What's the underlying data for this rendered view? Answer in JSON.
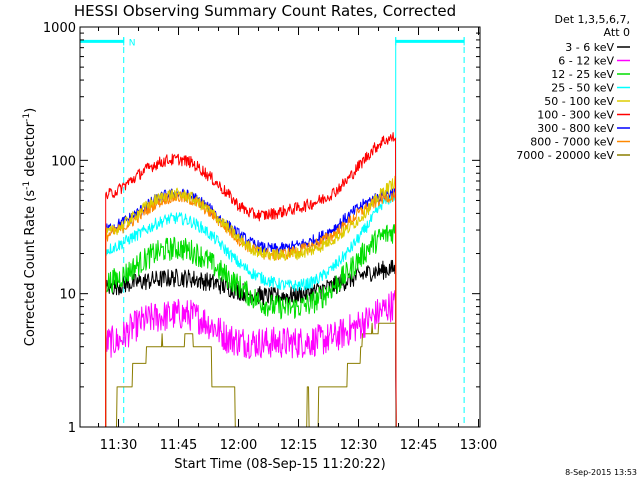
{
  "chart_data": {
    "type": "line",
    "title": "HESSI Observing Summary Count Rates, Corrected",
    "xlabel": "Start Time (08-Sep-15 11:20:22)",
    "ylabel_main": "Corrected Count Rate (s",
    "ylabel_sup1": "-1",
    "ylabel_mid": " detector",
    "ylabel_sup2": "-1",
    "ylabel_end": ")",
    "y_scale": "log",
    "ylim": [
      1,
      1000
    ],
    "xlim_minutes": [
      680.37,
      780.37
    ],
    "x_ticks": [
      {
        "label": "11:30",
        "minutes": 690
      },
      {
        "label": "11:45",
        "minutes": 705
      },
      {
        "label": "12:00",
        "minutes": 720
      },
      {
        "label": "12:15",
        "minutes": 735
      },
      {
        "label": "12:30",
        "minutes": 750
      },
      {
        "label": "12:45",
        "minutes": 765
      },
      {
        "label": "13:00",
        "minutes": 780
      }
    ],
    "y_ticks": [
      {
        "label": "1",
        "value": 1
      },
      {
        "label": "10",
        "value": 10
      },
      {
        "label": "100",
        "value": 100
      },
      {
        "label": "1000",
        "value": 1000
      }
    ],
    "legend": {
      "placement": "top-right",
      "header_line1": "Det 1,3,5,6,7,",
      "header_line2": "Att 0"
    },
    "series": [
      {
        "name": "3 - 6 keV",
        "color": "#000000",
        "x": [
          686.8,
          690,
          693,
          696,
          699,
          702,
          705,
          708,
          711,
          714,
          717,
          720,
          723,
          726,
          729,
          732,
          735,
          738,
          741,
          744,
          747,
          750,
          753,
          756,
          759.4
        ],
        "y": [
          11,
          11.5,
          12,
          12.3,
          12.7,
          13,
          13.2,
          13,
          12.5,
          12,
          11.2,
          10.5,
          10,
          9.6,
          9.5,
          9.6,
          9.8,
          10.2,
          10.8,
          11.5,
          12.5,
          13.5,
          14.5,
          15,
          15.5
        ]
      },
      {
        "name": "6 - 12 keV",
        "color": "#ff00ff",
        "x": [
          686.8,
          690,
          693,
          696,
          699,
          702,
          705,
          708,
          711,
          714,
          717,
          720,
          723,
          726,
          729,
          732,
          735,
          738,
          741,
          744,
          747,
          750,
          753,
          756,
          759.4
        ],
        "y": [
          4.3,
          4.4,
          5.4,
          6.2,
          6.6,
          6.8,
          7,
          6.9,
          6.4,
          5.6,
          4.7,
          4.4,
          4.3,
          4.3,
          4.3,
          4.3,
          4.3,
          4.4,
          4.5,
          4.7,
          5.2,
          5.8,
          6.5,
          7.5,
          8.5
        ]
      },
      {
        "name": "12 - 25 keV",
        "color": "#00dd00",
        "x": [
          686.8,
          690,
          693,
          696,
          699,
          702,
          705,
          708,
          711,
          714,
          717,
          720,
          723,
          726,
          729,
          732,
          735,
          738,
          741,
          744,
          747,
          750,
          753,
          756,
          759.4
        ],
        "y": [
          12,
          13,
          15,
          17.5,
          20,
          21.5,
          22,
          21,
          19,
          16,
          13.5,
          11.5,
          9.6,
          8.5,
          8,
          7.8,
          7.9,
          8.4,
          9.5,
          11.5,
          14,
          18,
          23,
          27,
          30
        ]
      },
      {
        "name": "25 - 50 keV",
        "color": "#00ffff",
        "x": [
          686.8,
          690,
          693,
          696,
          699,
          702,
          705,
          708,
          711,
          714,
          717,
          720,
          723,
          726,
          729,
          732,
          735,
          738,
          741,
          744,
          747,
          750,
          753,
          756,
          759.4
        ],
        "y": [
          21,
          23,
          26,
          29,
          33,
          36,
          37,
          35,
          31,
          26,
          21,
          17,
          14.5,
          13,
          12,
          11.5,
          11.5,
          12,
          13.5,
          16,
          20,
          26,
          35,
          48,
          55
        ]
      },
      {
        "name": "50 - 100 keV",
        "color": "#ddcc00",
        "x": [
          686.8,
          690,
          693,
          696,
          699,
          702,
          705,
          708,
          711,
          714,
          717,
          720,
          723,
          726,
          729,
          732,
          735,
          738,
          741,
          744,
          747,
          750,
          753,
          756,
          759.4
        ],
        "y": [
          28,
          31,
          36,
          43,
          50,
          55,
          56,
          53,
          46,
          39,
          32,
          26,
          22,
          20,
          19.5,
          19.5,
          20,
          21,
          23,
          26,
          30,
          36,
          45,
          58,
          70
        ]
      },
      {
        "name": "100 - 300 keV",
        "color": "#ff0000",
        "x": [
          686.8,
          690,
          693,
          696,
          699,
          702,
          705,
          708,
          711,
          714,
          717,
          720,
          723,
          726,
          729,
          732,
          735,
          738,
          741,
          744,
          747,
          750,
          753,
          756,
          759.4
        ],
        "y": [
          54,
          60,
          70,
          82,
          93,
          100,
          102,
          97,
          84,
          70,
          57,
          46,
          40,
          38.5,
          40,
          42,
          44,
          47,
          51,
          58,
          70,
          90,
          115,
          140,
          150
        ]
      },
      {
        "name": "300 - 800 keV",
        "color": "#0000ff",
        "x": [
          686.8,
          690,
          693,
          696,
          699,
          702,
          705,
          708,
          711,
          714,
          717,
          720,
          723,
          726,
          729,
          732,
          735,
          738,
          741,
          744,
          747,
          750,
          753,
          756,
          759.4
        ],
        "y": [
          30,
          33,
          37,
          43,
          50,
          55,
          56,
          54,
          48,
          40,
          33,
          28,
          24,
          22,
          21.5,
          22,
          23,
          24.5,
          27,
          31,
          37,
          44,
          50,
          55,
          58
        ]
      },
      {
        "name": "800 - 7000 keV",
        "color": "#ff8800",
        "x": [
          686.8,
          690,
          693,
          696,
          699,
          702,
          705,
          708,
          711,
          714,
          717,
          720,
          723,
          726,
          729,
          732,
          735,
          738,
          741,
          744,
          747,
          750,
          753,
          756,
          759.4
        ],
        "y": [
          27,
          30,
          34,
          40,
          47,
          52,
          53,
          51,
          45,
          38,
          31,
          25.5,
          22,
          20,
          19.5,
          20,
          21,
          22.5,
          25,
          28,
          33,
          40,
          46,
          52,
          55
        ]
      },
      {
        "name": "7000 - 20000 keV",
        "color": "#8b7d00",
        "x": [
          686.8,
          690,
          693,
          696,
          699,
          702,
          705,
          708,
          711,
          714,
          717,
          720,
          723,
          726,
          729,
          732,
          735,
          738,
          741,
          744,
          747,
          750,
          753,
          756,
          759.4
        ],
        "y": [
          1.05,
          2,
          2.8,
          3.5,
          4.2,
          4.6,
          4.8,
          4.5,
          3.7,
          2.6,
          1.7,
          1.2,
          1.05,
          1.05,
          1.1,
          1.2,
          1.3,
          1.5,
          1.8,
          2.3,
          3,
          4,
          5,
          5.8,
          6
        ]
      }
    ],
    "annotations": [
      {
        "kind": "night-bar",
        "x_start": 680.37,
        "x_end": 691.3,
        "y": 780
      },
      {
        "kind": "night-bar",
        "x_start": 759.3,
        "x_end": 776.4,
        "y": 780
      },
      {
        "kind": "saa-flag",
        "label": "N",
        "x": 691.3,
        "y": 780
      }
    ],
    "vertical_lines": [
      {
        "x": 680.37,
        "style": "solid"
      },
      {
        "x": 691.3,
        "style": "dashed"
      },
      {
        "x": 759.3,
        "style": "solid"
      },
      {
        "x": 776.4,
        "style": "dashed"
      }
    ],
    "annotation_color": "#00ffff",
    "data_end_x": 760.6,
    "grid": false
  },
  "footer": {
    "timestamp": "8-Sep-2015 13:53"
  }
}
